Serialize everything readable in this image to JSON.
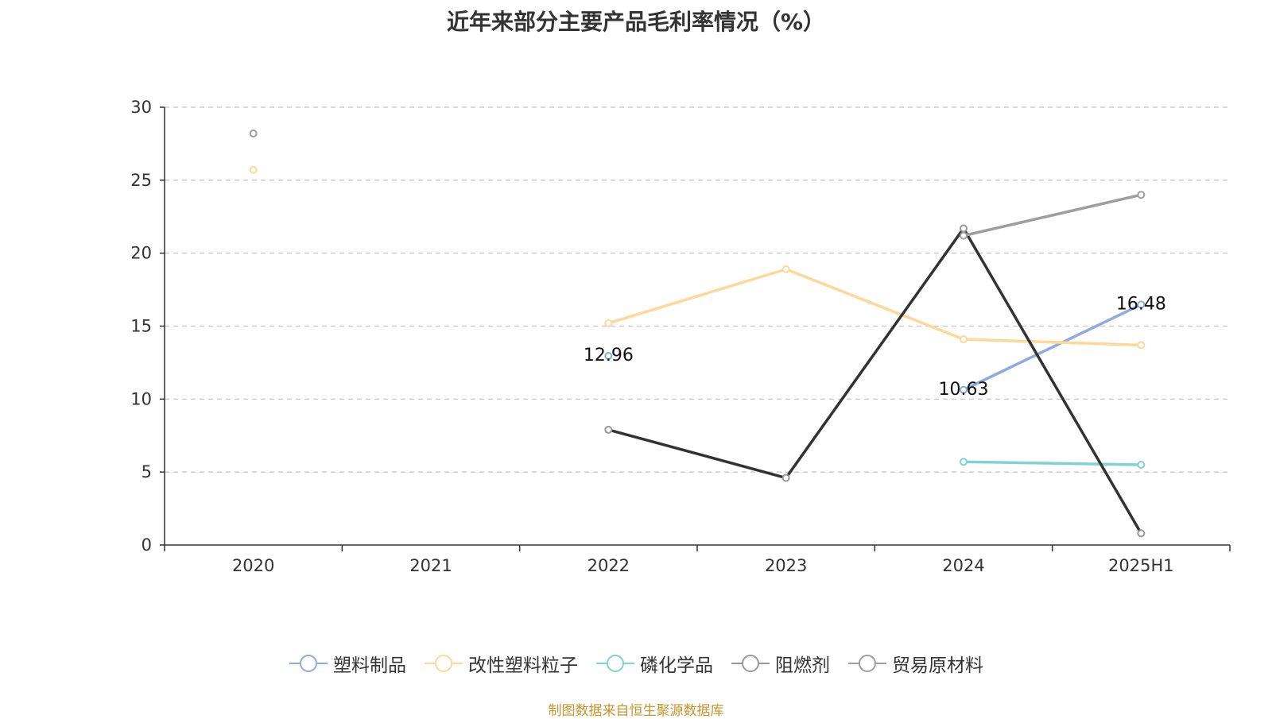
{
  "chart_data": {
    "type": "line",
    "title": "近年来部分主要产品毛利率情况（%）",
    "categories": [
      "2020",
      "2021",
      "2022",
      "2023",
      "2024",
      "2025H1"
    ],
    "ylim": [
      0,
      30
    ],
    "yticks": [
      "0",
      "5",
      "10",
      "15",
      "20",
      "25",
      "30"
    ],
    "grid": true,
    "legend_position": "bottom",
    "series": [
      {
        "name": "塑料制品",
        "color": "#8faadc",
        "values": [
          null,
          null,
          12.96,
          null,
          10.63,
          16.48
        ],
        "labels": [
          null,
          null,
          "12.96",
          null,
          "10.63",
          "16.48"
        ]
      },
      {
        "name": "改性塑料粒子",
        "color": "#fdd89a",
        "values": [
          25.7,
          null,
          15.2,
          18.9,
          14.1,
          13.7
        ]
      },
      {
        "name": "磷化学品",
        "color": "#7fd3d3",
        "values": [
          null,
          null,
          null,
          null,
          5.7,
          5.5
        ]
      },
      {
        "name": "阻燃剂",
        "color": "#333333",
        "values": [
          null,
          null,
          7.9,
          4.6,
          21.7,
          0.8
        ]
      },
      {
        "name": "贸易原材料",
        "color": "#9e9e9e",
        "values": [
          28.2,
          null,
          null,
          null,
          21.2,
          24.0
        ]
      }
    ]
  },
  "footer": "制图数据来自恒生聚源数据库"
}
